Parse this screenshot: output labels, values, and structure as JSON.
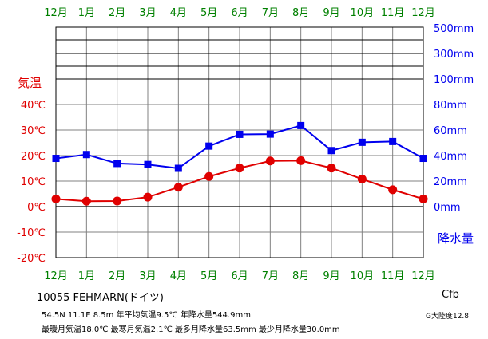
{
  "chart_data": {
    "type": "line",
    "months": [
      "12月",
      "1月",
      "2月",
      "3月",
      "4月",
      "5月",
      "6月",
      "7月",
      "8月",
      "9月",
      "10月",
      "11月",
      "12月"
    ],
    "temperature": {
      "label": "気温",
      "unit": "℃",
      "values": [
        3.0,
        2.1,
        2.2,
        3.7,
        7.6,
        11.8,
        15.1,
        17.9,
        18.0,
        15.1,
        10.8,
        6.6,
        3.0
      ],
      "ticks": [
        "40℃",
        "30℃",
        "20℃",
        "10℃",
        "0℃",
        "-10℃",
        "-20℃"
      ],
      "range": [
        -20,
        40
      ],
      "color": "#e00000"
    },
    "precipitation": {
      "label": "降水量",
      "unit": "mm",
      "values": [
        37.8,
        40.8,
        33.8,
        33.0,
        30.0,
        47.4,
        56.6,
        56.8,
        63.5,
        43.9,
        50.4,
        51.0,
        37.8
      ],
      "ticks": [
        "500mm",
        "300mm",
        "100mm",
        "80mm",
        "60mm",
        "40mm",
        "20mm",
        "0mm"
      ],
      "range": [
        0,
        500
      ],
      "color": "#0000ee"
    },
    "grid": true
  },
  "info": {
    "station": "10055 FEHMARN(ドイツ)",
    "line2": "54.5N 11.1E 8.5m 年平均気温9.5℃ 年降水量544.9mm",
    "line3": "最暖月気温18.0℃ 最寒月気温2.1℃ 最多月降水量63.5mm 最少月降水量30.0mm",
    "koppen": "Cfb",
    "continent": "G大陸度12.8"
  },
  "colors": {
    "month_label": "#008000",
    "grid": "#808080",
    "frame": "#000000"
  }
}
